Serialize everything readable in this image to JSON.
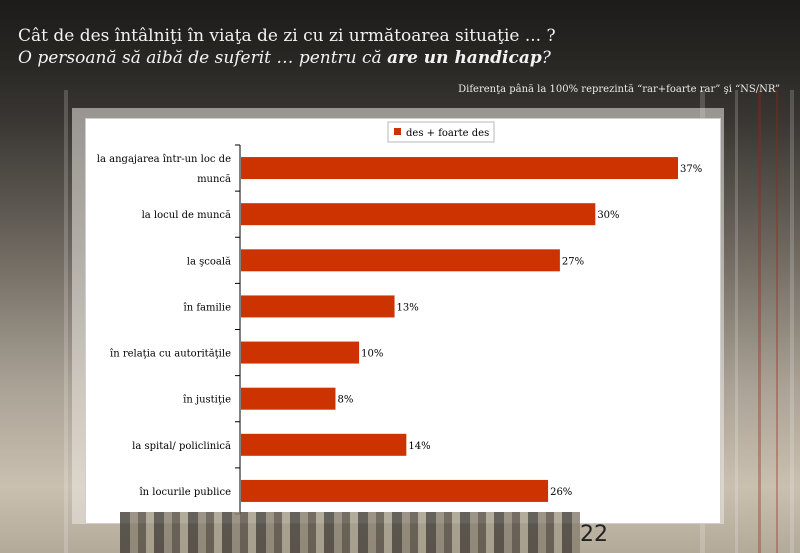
{
  "slide": {
    "title_line1": "Cât de des întâlniţi în viaţa de zi cu zi următoarea situaţie ... ?",
    "title_line2_prefix": "O persoană să aibă de suferit … pentru că ",
    "title_line2_bold": "are un handicap",
    "title_line2_suffix": "?",
    "note": "Diferenţa până la 100% reprezintă  “rar+foarte rar” şi “NS/NR”",
    "page_number": "22"
  },
  "chart_data": {
    "type": "bar",
    "orientation": "horizontal",
    "categories": [
      [
        "la angajarea într-un loc de",
        "muncă"
      ],
      [
        "la locul de muncă"
      ],
      [
        "la şcoală"
      ],
      [
        "în familie"
      ],
      [
        "în relaţia cu autorităţile"
      ],
      [
        "în justiţie"
      ],
      [
        "la spital/ policlinică"
      ],
      [
        "în locurile publice"
      ]
    ],
    "series": [
      {
        "name": "des + foarte des",
        "values": [
          37,
          30,
          27,
          13,
          10,
          8,
          14,
          26
        ],
        "color": "#cc3300"
      }
    ],
    "value_labels": [
      "37%",
      "30%",
      "27%",
      "13%",
      "10%",
      "8%",
      "14%",
      "26%"
    ],
    "xlim": [
      0,
      37
    ],
    "legend": "top-center",
    "grid": false
  }
}
